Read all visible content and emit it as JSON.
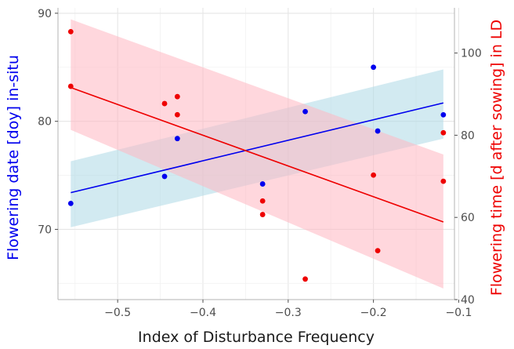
{
  "chart_data": {
    "type": "scatter",
    "title": "",
    "xlabel": "Index of Disturbance Frequency",
    "ylabel_left": "Flowering date [doy] in-situ",
    "ylabel_right": "Flowering time [d after sowing] in LD",
    "xlim": [
      -0.57,
      -0.105
    ],
    "ylim_left": [
      63.5,
      90.5
    ],
    "ylim_right": [
      40,
      111
    ],
    "x_ticks": [
      -0.5,
      -0.4,
      -0.3,
      -0.2,
      -0.1
    ],
    "x_tick_labels": [
      "−0.5",
      "−0.4",
      "−0.3",
      "−0.2",
      "−0.1"
    ],
    "y_left_ticks": [
      70,
      80,
      90
    ],
    "y_left_tick_labels": [
      "70",
      "80",
      "90"
    ],
    "y_right_ticks": [
      40,
      60,
      80,
      100
    ],
    "y_right_tick_labels": [
      "40",
      "60",
      "80",
      "100"
    ],
    "grid": true,
    "series": [
      {
        "axis": "left",
        "color": "#0000ee",
        "band_color": "#add8e6",
        "points": [
          {
            "x": -0.555,
            "y": 72.4
          },
          {
            "x": -0.445,
            "y": 74.9
          },
          {
            "x": -0.43,
            "y": 78.4
          },
          {
            "x": -0.33,
            "y": 74.2
          },
          {
            "x": -0.28,
            "y": 80.9
          },
          {
            "x": -0.2,
            "y": 85.0
          },
          {
            "x": -0.195,
            "y": 79.1
          },
          {
            "x": -0.118,
            "y": 80.6
          }
        ],
        "fit": {
          "x": [
            -0.555,
            -0.118
          ],
          "y": [
            73.4,
            81.7
          ]
        },
        "ci": {
          "x": [
            -0.555,
            -0.118
          ],
          "lower": [
            70.2,
            78.4
          ],
          "upper": [
            76.3,
            84.8
          ]
        }
      },
      {
        "axis": "right",
        "color": "#ee0000",
        "band_color": "#ffb6c1",
        "points": [
          {
            "x": -0.555,
            "y": 105.2
          },
          {
            "x": -0.555,
            "y": 91.9
          },
          {
            "x": -0.445,
            "y": 87.7
          },
          {
            "x": -0.43,
            "y": 89.4
          },
          {
            "x": -0.43,
            "y": 85.0
          },
          {
            "x": -0.33,
            "y": 64.0
          },
          {
            "x": -0.33,
            "y": 60.7
          },
          {
            "x": -0.28,
            "y": 45.0
          },
          {
            "x": -0.2,
            "y": 70.3
          },
          {
            "x": -0.195,
            "y": 51.9
          },
          {
            "x": -0.118,
            "y": 80.6
          },
          {
            "x": -0.118,
            "y": 68.8
          }
        ],
        "fit": {
          "x": [
            -0.555,
            -0.118
          ],
          "y": [
            91.6,
            58.9
          ]
        },
        "ci": {
          "x": [
            -0.555,
            -0.118
          ],
          "lower": [
            81.3,
            42.7
          ],
          "upper": [
            108.2,
            75.3
          ]
        }
      }
    ]
  }
}
